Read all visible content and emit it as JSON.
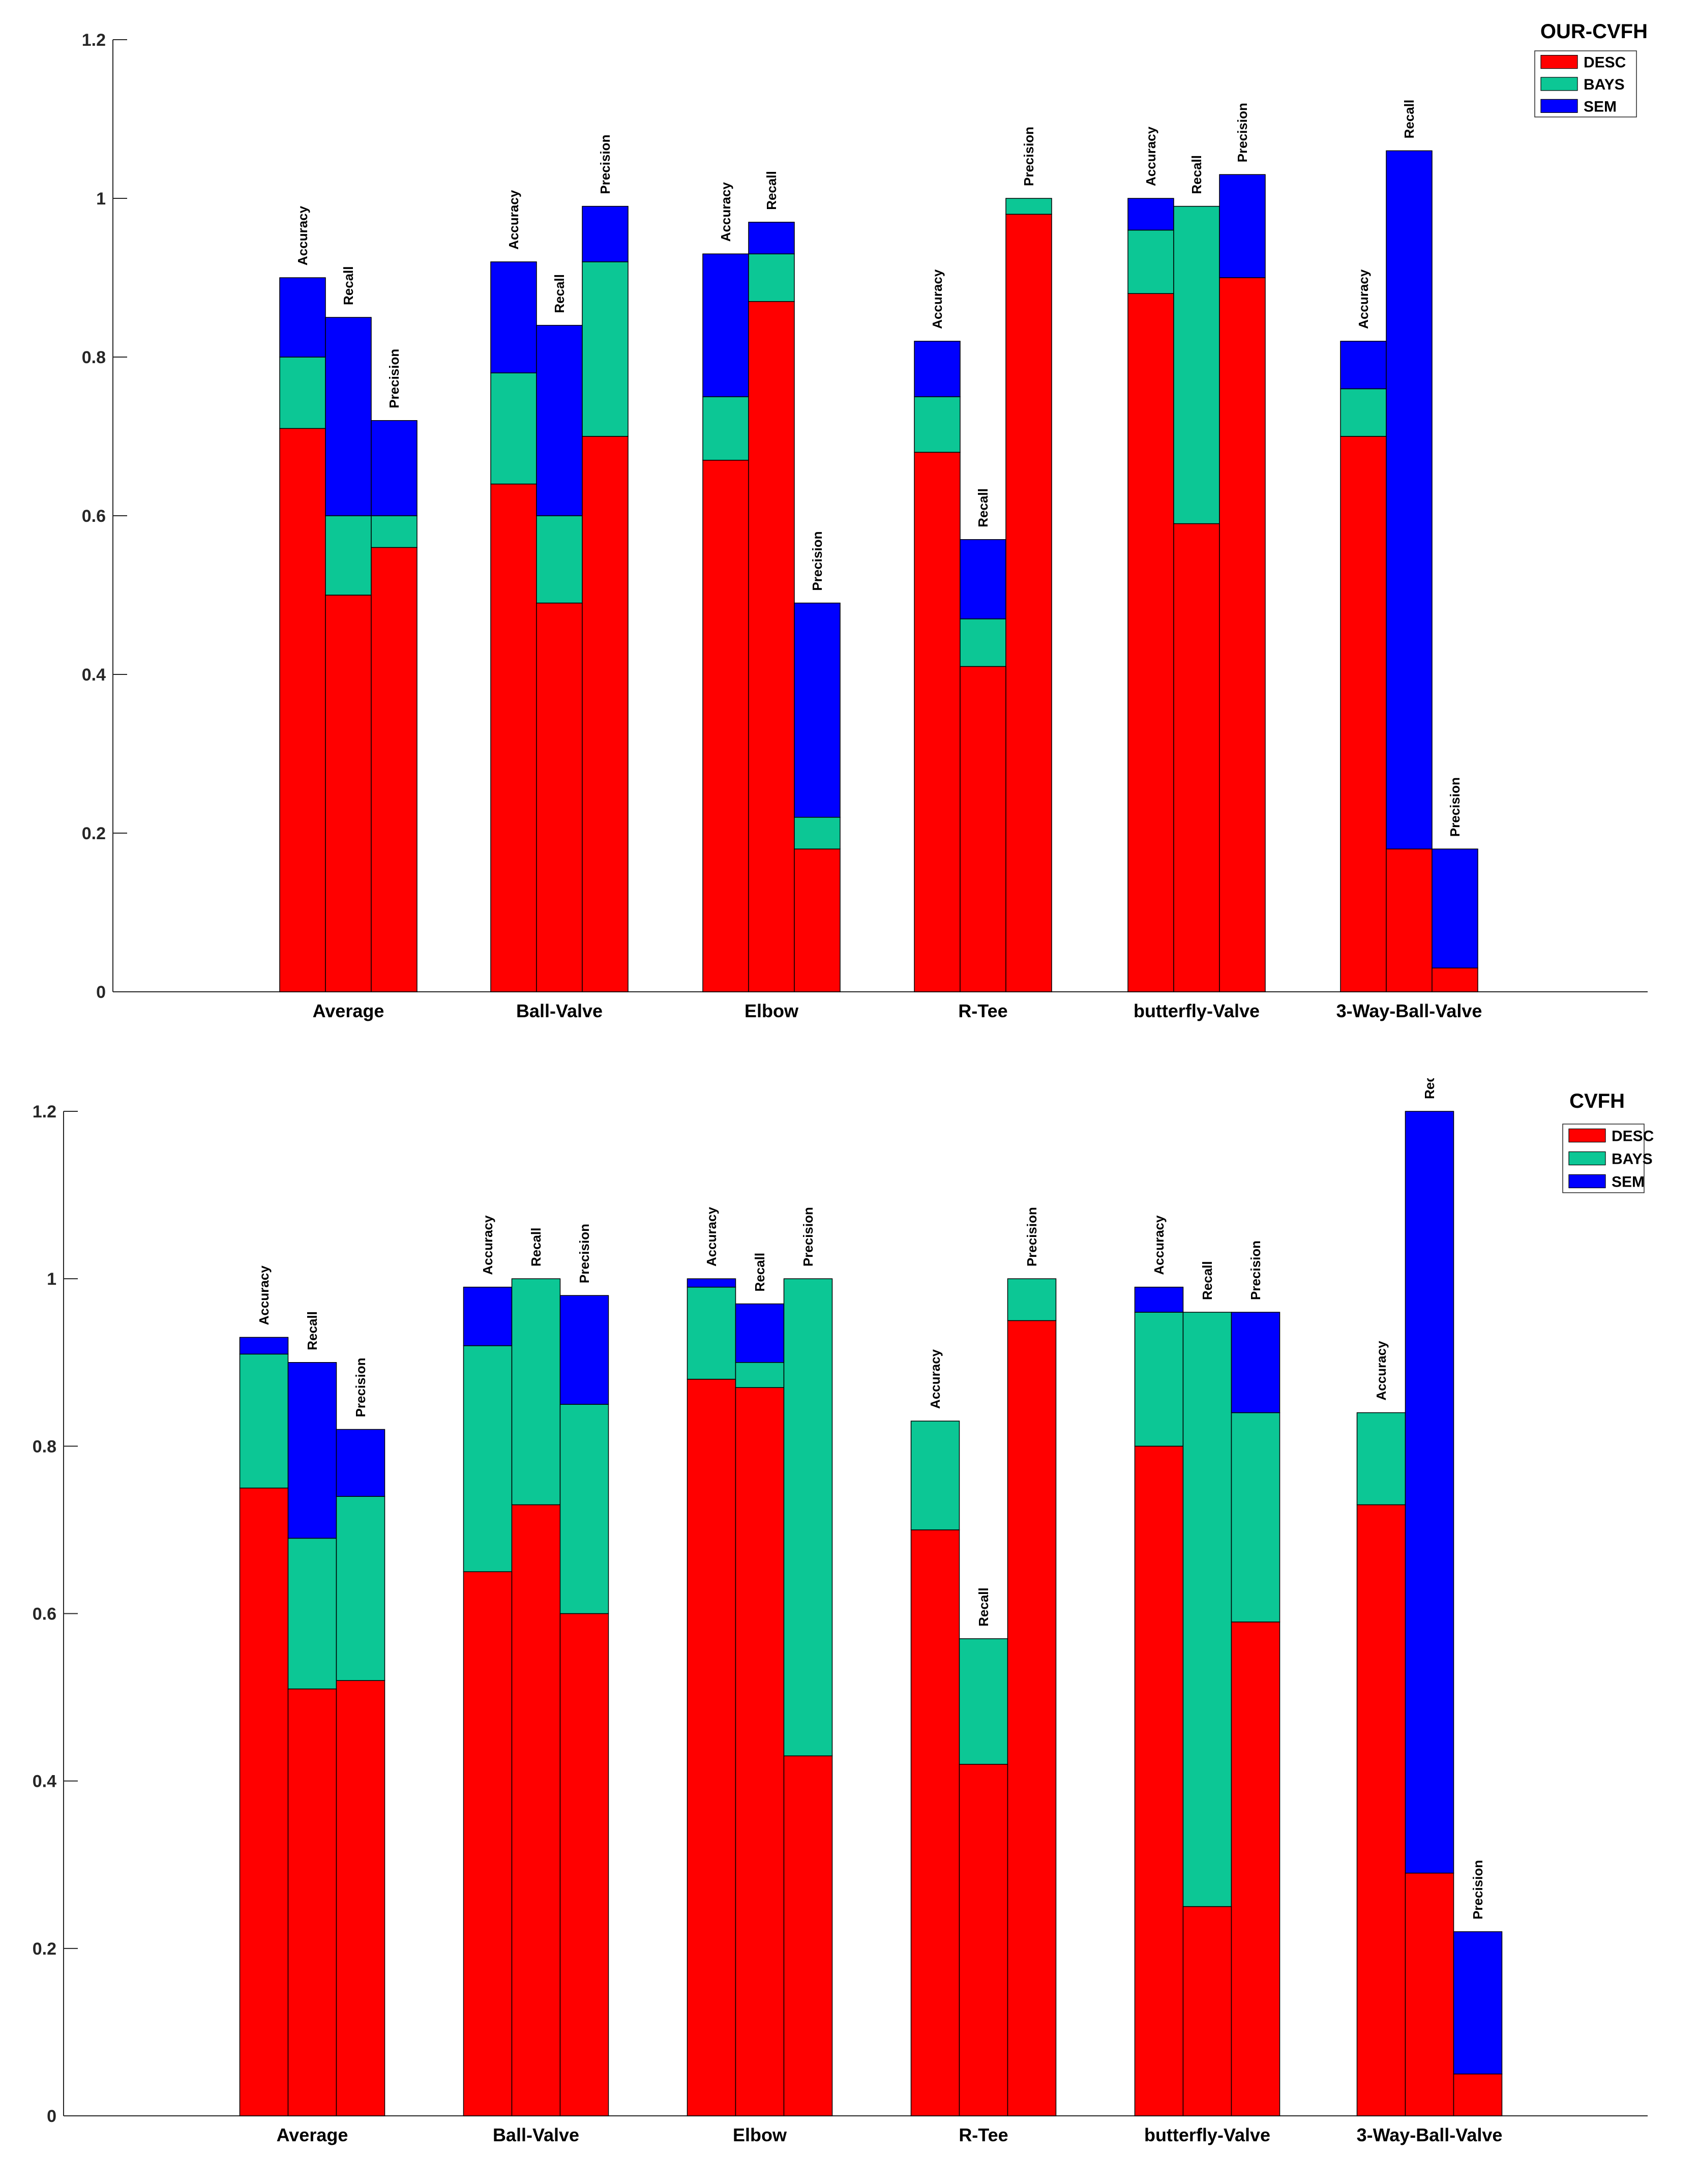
{
  "colors": {
    "DESC": "#ff0000",
    "BAYS": "#0cc795",
    "SEM": "#0000ff"
  },
  "chart_data": [
    {
      "type": "bar",
      "stacked": true,
      "title": "OUR-CVFH",
      "legend": [
        "DESC",
        "BAYS",
        "SEM"
      ],
      "legend_position": "top-right",
      "ylim": [
        0,
        1.2
      ],
      "yticks": [
        "0",
        "0.2",
        "0.4",
        "0.6",
        "0.8",
        "1",
        "1.2"
      ],
      "ytick_values": [
        0,
        0.2,
        0.4,
        0.6,
        0.8,
        1.0,
        1.2
      ],
      "categories": [
        {
          "name": "Average",
          "bars": [
            {
              "label": "Accuracy",
              "DESC": 0.71,
              "BAYS": 0.09,
              "SEM": 0.1
            },
            {
              "label": "Recall",
              "DESC": 0.5,
              "BAYS": 0.1,
              "SEM": 0.25
            },
            {
              "label": "Precision",
              "DESC": 0.56,
              "BAYS": 0.04,
              "SEM": 0.12
            }
          ]
        },
        {
          "name": "Ball-Valve",
          "bars": [
            {
              "label": "Accuracy",
              "DESC": 0.64,
              "BAYS": 0.14,
              "SEM": 0.14
            },
            {
              "label": "Recall",
              "DESC": 0.49,
              "BAYS": 0.11,
              "SEM": 0.24
            },
            {
              "label": "Precision",
              "DESC": 0.7,
              "BAYS": 0.22,
              "SEM": 0.07
            }
          ]
        },
        {
          "name": "Elbow",
          "bars": [
            {
              "label": "Accuracy",
              "DESC": 0.67,
              "BAYS": 0.08,
              "SEM": 0.18
            },
            {
              "label": "Recall",
              "DESC": 0.87,
              "BAYS": 0.06,
              "SEM": 0.04
            },
            {
              "label": "Precision",
              "DESC": 0.18,
              "BAYS": 0.04,
              "SEM": 0.27
            }
          ]
        },
        {
          "name": "R-Tee",
          "bars": [
            {
              "label": "Accuracy",
              "DESC": 0.68,
              "BAYS": 0.07,
              "SEM": 0.07
            },
            {
              "label": "Recall",
              "DESC": 0.41,
              "BAYS": 0.06,
              "SEM": 0.1
            },
            {
              "label": "Precision",
              "DESC": 0.98,
              "BAYS": 0.02,
              "SEM": 0.0
            }
          ]
        },
        {
          "name": "butterfly-Valve",
          "bars": [
            {
              "label": "Accuracy",
              "DESC": 0.88,
              "BAYS": 0.08,
              "SEM": 0.04
            },
            {
              "label": "Recall",
              "DESC": 0.59,
              "BAYS": 0.4,
              "SEM": 0.0
            },
            {
              "label": "Precision",
              "DESC": 0.9,
              "BAYS": 0.0,
              "SEM": 0.13
            }
          ]
        },
        {
          "name": "3-Way-Ball-Valve",
          "bars": [
            {
              "label": "Accuracy",
              "DESC": 0.7,
              "BAYS": 0.06,
              "SEM": 0.06
            },
            {
              "label": "Recall",
              "DESC": 0.18,
              "BAYS": 0.0,
              "SEM": 0.88
            },
            {
              "label": "Precision",
              "DESC": 0.03,
              "BAYS": 0.0,
              "SEM": 0.15
            }
          ]
        }
      ]
    },
    {
      "type": "bar",
      "stacked": true,
      "title": "CVFH",
      "legend": [
        "DESC",
        "BAYS",
        "SEM"
      ],
      "legend_position": "top-right",
      "ylim": [
        0,
        1.2
      ],
      "yticks": [
        "0",
        "0.2",
        "0.4",
        "0.6",
        "0.8",
        "1",
        "1.2"
      ],
      "ytick_values": [
        0,
        0.2,
        0.4,
        0.6,
        0.8,
        1.0,
        1.2
      ],
      "categories": [
        {
          "name": "Average",
          "bars": [
            {
              "label": "Accuracy",
              "DESC": 0.75,
              "BAYS": 0.16,
              "SEM": 0.02
            },
            {
              "label": "Recall",
              "DESC": 0.51,
              "BAYS": 0.18,
              "SEM": 0.21
            },
            {
              "label": "Precision",
              "DESC": 0.52,
              "BAYS": 0.22,
              "SEM": 0.08
            }
          ]
        },
        {
          "name": "Ball-Valve",
          "bars": [
            {
              "label": "Accuracy",
              "DESC": 0.65,
              "BAYS": 0.27,
              "SEM": 0.07
            },
            {
              "label": "Recall",
              "DESC": 0.73,
              "BAYS": 0.27,
              "SEM": 0.0
            },
            {
              "label": "Precision",
              "DESC": 0.6,
              "BAYS": 0.25,
              "SEM": 0.13
            }
          ]
        },
        {
          "name": "Elbow",
          "bars": [
            {
              "label": "Accuracy",
              "DESC": 0.88,
              "BAYS": 0.11,
              "SEM": 0.01
            },
            {
              "label": "Recall",
              "DESC": 0.87,
              "BAYS": 0.03,
              "SEM": 0.07
            },
            {
              "label": "Precision",
              "DESC": 0.43,
              "BAYS": 0.57,
              "SEM": 0.0
            }
          ]
        },
        {
          "name": "R-Tee",
          "bars": [
            {
              "label": "Accuracy",
              "DESC": 0.7,
              "BAYS": 0.13,
              "SEM": 0.0
            },
            {
              "label": "Recall",
              "DESC": 0.42,
              "BAYS": 0.15,
              "SEM": 0.0
            },
            {
              "label": "Precision",
              "DESC": 0.95,
              "BAYS": 0.05,
              "SEM": 0.0
            }
          ]
        },
        {
          "name": "butterfly-Valve",
          "bars": [
            {
              "label": "Accuracy",
              "DESC": 0.8,
              "BAYS": 0.16,
              "SEM": 0.03
            },
            {
              "label": "Recall",
              "DESC": 0.25,
              "BAYS": 0.71,
              "SEM": 0.0
            },
            {
              "label": "Precision",
              "DESC": 0.59,
              "BAYS": 0.25,
              "SEM": 0.12
            }
          ]
        },
        {
          "name": "3-Way-Ball-Valve",
          "bars": [
            {
              "label": "Accuracy",
              "DESC": 0.73,
              "BAYS": 0.11,
              "SEM": 0.0
            },
            {
              "label": "Recall",
              "DESC": 0.29,
              "BAYS": 0.0,
              "SEM": 0.91
            },
            {
              "label": "Precision",
              "DESC": 0.05,
              "BAYS": 0.0,
              "SEM": 0.17
            }
          ]
        }
      ]
    }
  ]
}
